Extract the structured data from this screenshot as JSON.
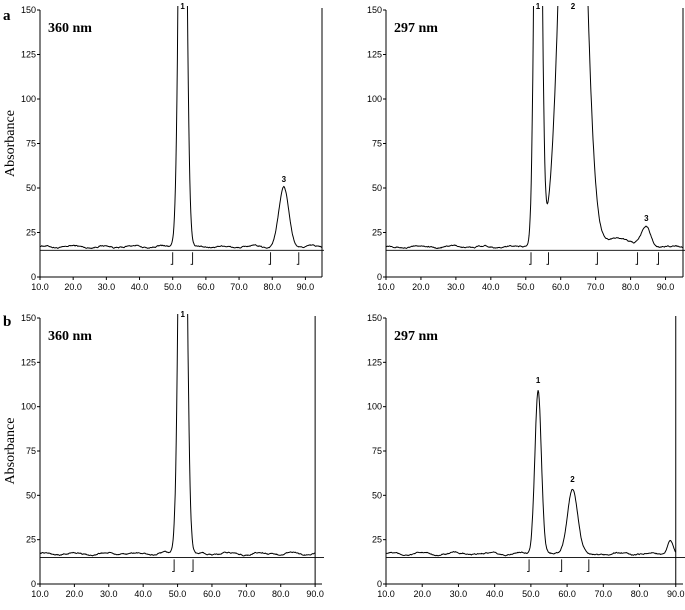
{
  "figure": {
    "row_labels": [
      "a",
      "b"
    ]
  },
  "chart_data": [
    {
      "type": "line",
      "panel": "a",
      "title": "360 nm",
      "ylabel": "Absorbance",
      "xlim": [
        10,
        95
      ],
      "ylim": [
        0,
        150
      ],
      "x_ticks": [
        "10.0",
        "20.0",
        "30.0",
        "40.0",
        "50.0",
        "60.0",
        "70.0",
        "80.0",
        "90.0"
      ],
      "y_ticks": [
        "0",
        "25",
        "50",
        "75",
        "100",
        "125",
        "150"
      ],
      "baseline": 15,
      "noise": 17,
      "peaks": [
        {
          "label": "1",
          "x": 53,
          "y": 150,
          "width": 1.0,
          "clipped": true
        },
        {
          "label": "3",
          "x": 83.5,
          "y": 50,
          "width": 1.5
        }
      ],
      "integration_marks": [
        50.0,
        56.0,
        79.5,
        88.0
      ],
      "end_line_x": 95
    },
    {
      "type": "line",
      "panel": "a",
      "title": "297 nm",
      "ylabel": "",
      "xlim": [
        10,
        95
      ],
      "ylim": [
        0,
        150
      ],
      "x_ticks": [
        "10.0",
        "20.0",
        "30.0",
        "40.0",
        "50.0",
        "60.0",
        "70.0",
        "80.0",
        "90.0"
      ],
      "y_ticks": [
        "0",
        "25",
        "50",
        "75",
        "100",
        "125",
        "150"
      ],
      "baseline": 15,
      "noise": 17,
      "peaks": [
        {
          "label": "1",
          "x": 53.5,
          "y": 150,
          "width": 0.9,
          "clipped": true
        },
        {
          "label": "2",
          "x": 63.5,
          "y": 150,
          "width": 3.0,
          "clipped": true
        },
        {
          "label": "",
          "x": 77,
          "y": 22,
          "width": 3.0
        },
        {
          "label": "3",
          "x": 84.5,
          "y": 28,
          "width": 1.3
        }
      ],
      "integration_marks": [
        51.5,
        56.5,
        70.5,
        82.0,
        88.0
      ],
      "end_line_x": 95
    },
    {
      "type": "line",
      "panel": "b",
      "title": "360 nm",
      "ylabel": "Absorbance",
      "xlim": [
        10,
        92
      ],
      "ylim": [
        0,
        150
      ],
      "x_ticks": [
        "10.0",
        "20.0",
        "30.0",
        "40.0",
        "50.0",
        "60.0",
        "70.0",
        "80.0",
        "90.0"
      ],
      "y_ticks": [
        "0",
        "25",
        "50",
        "75",
        "100",
        "125",
        "150"
      ],
      "baseline": 15,
      "noise": 17,
      "peaks": [
        {
          "label": "1",
          "x": 51.5,
          "y": 150,
          "width": 1.0,
          "clipped": true
        }
      ],
      "integration_marks": [
        49.0,
        54.5
      ],
      "end_line_x": 90
    },
    {
      "type": "line",
      "panel": "b",
      "title": "297 nm",
      "ylabel": "",
      "xlim": [
        10,
        92
      ],
      "ylim": [
        0,
        150
      ],
      "x_ticks": [
        "10.0",
        "20.0",
        "30.0",
        "40.0",
        "50.0",
        "60.0",
        "70.0",
        "80.0",
        "90.0"
      ],
      "y_ticks": [
        "0",
        "25",
        "50",
        "75",
        "100",
        "125",
        "150"
      ],
      "baseline": 15,
      "noise": 17,
      "peaks": [
        {
          "label": "1",
          "x": 52,
          "y": 110,
          "width": 0.9
        },
        {
          "label": "2",
          "x": 61.5,
          "y": 54,
          "width": 1.4
        },
        {
          "label": "",
          "x": 88.5,
          "y": 25,
          "width": 0.8
        }
      ],
      "integration_marks": [
        49.5,
        58.5,
        66.0
      ],
      "end_line_x": 90
    }
  ]
}
